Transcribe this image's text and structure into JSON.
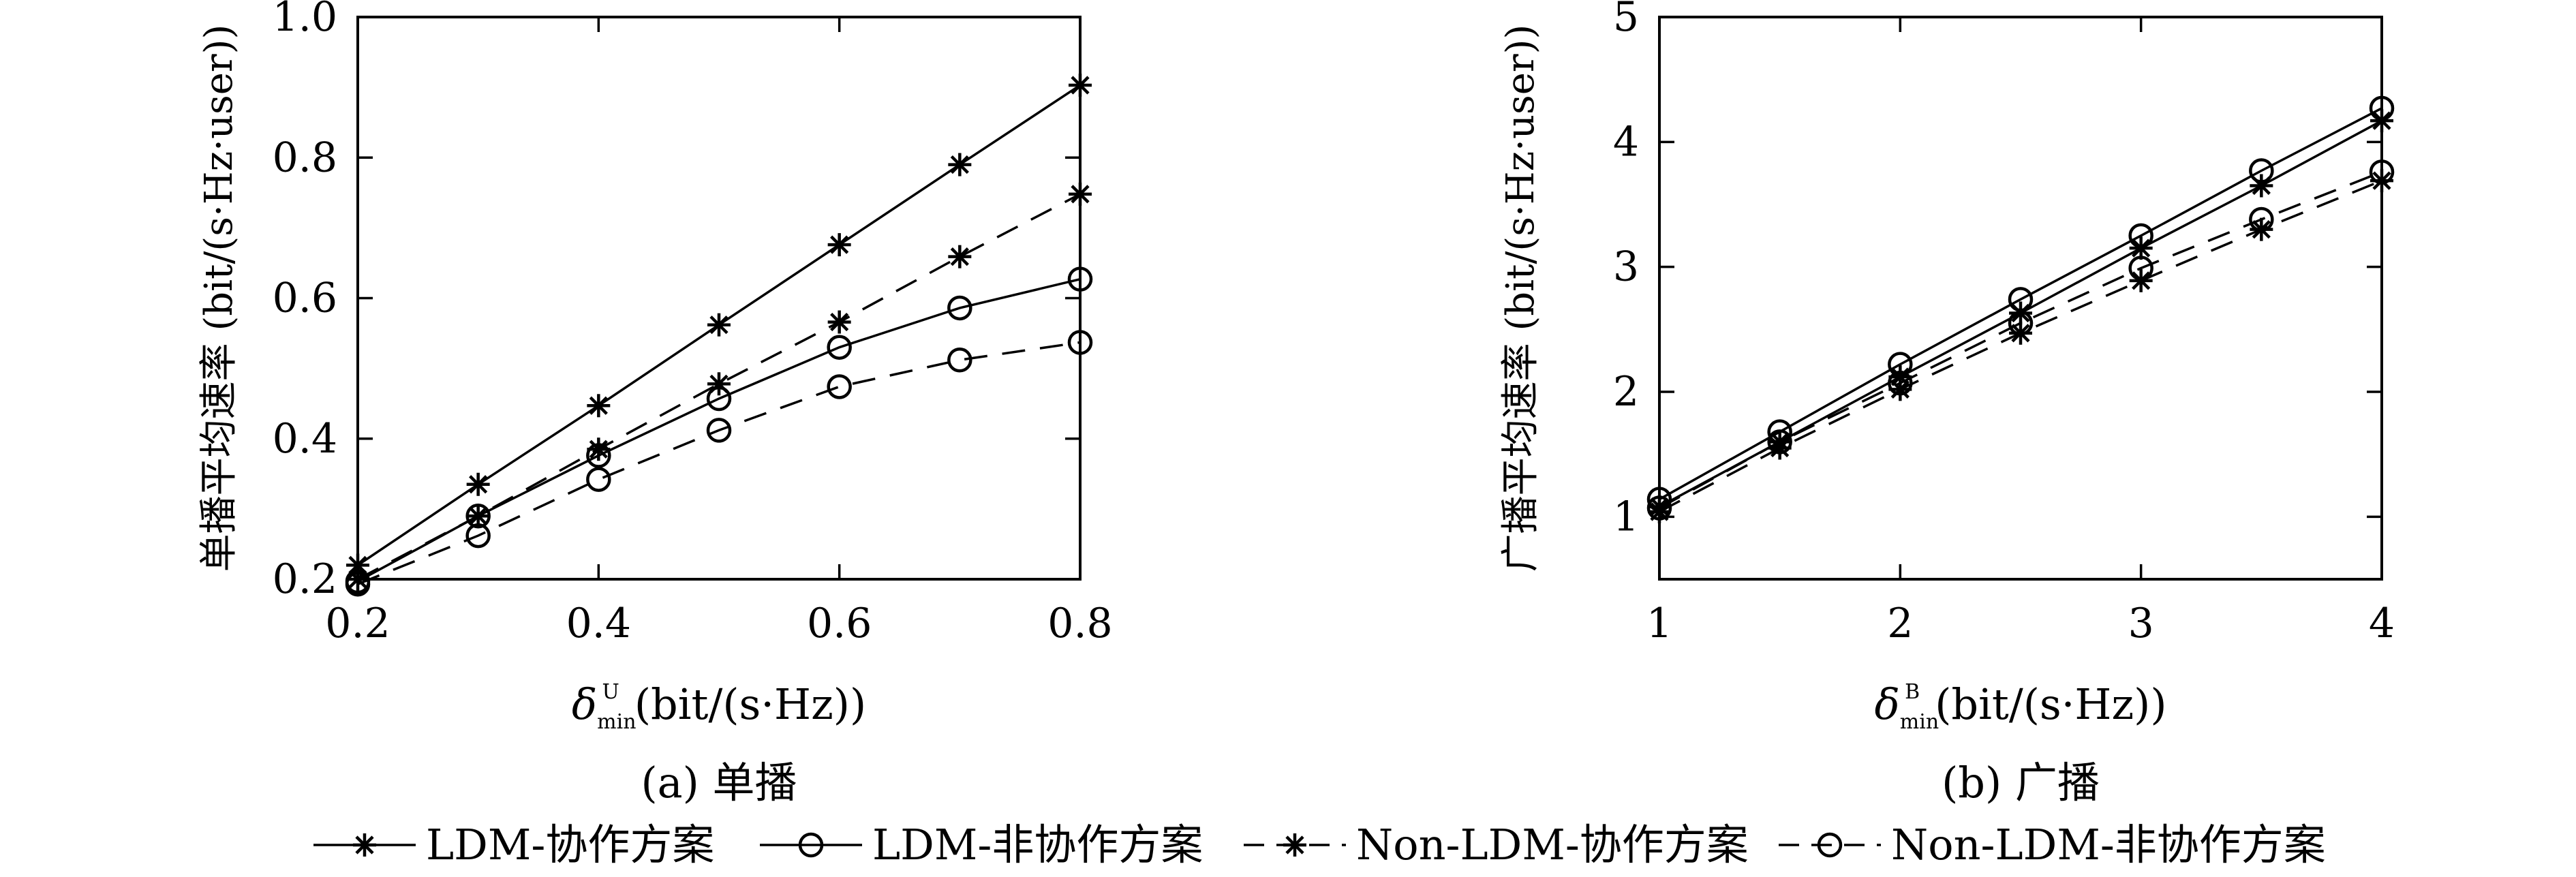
{
  "chart_data": [
    {
      "type": "line",
      "caption": "(a) 单播",
      "ylabel": "单播平均速率 (bit/(s·Hz·user))",
      "xlabel": {
        "symbol": "δ",
        "subscript": "min",
        "superscript": "U",
        "unit": "(bit/(s·Hz))"
      },
      "xlim": [
        0.2,
        0.8
      ],
      "ylim": [
        0.2,
        1.0
      ],
      "xticks": [
        "0.2",
        "0.4",
        "0.6",
        "0.8"
      ],
      "yticks": [
        "0.2",
        "0.4",
        "0.6",
        "0.8",
        "1.0"
      ],
      "x": [
        0.2,
        0.3,
        0.4,
        0.5,
        0.6,
        0.7,
        0.8
      ],
      "series": [
        {
          "name": "LDM-协作方案",
          "values": [
            0.22,
            0.335,
            0.447,
            0.562,
            0.676,
            0.79,
            0.903
          ]
        },
        {
          "name": "LDM-非协作方案",
          "values": [
            0.197,
            0.29,
            0.376,
            0.457,
            0.53,
            0.586,
            0.627
          ]
        },
        {
          "name": "Non-LDM-协作方案",
          "values": [
            0.2,
            0.29,
            0.385,
            0.478,
            0.566,
            0.659,
            0.748
          ]
        },
        {
          "name": "Non-LDM-非协作方案",
          "values": [
            0.193,
            0.262,
            0.342,
            0.412,
            0.474,
            0.512,
            0.537
          ]
        }
      ]
    },
    {
      "type": "line",
      "caption": "(b) 广播",
      "ylabel": "广播平均速率 (bit/(s·Hz·user))",
      "xlabel": {
        "symbol": "δ",
        "subscript": "min",
        "superscript": "B",
        "unit": "(bit/(s·Hz))"
      },
      "xlim": [
        1,
        4
      ],
      "ylim": [
        0.5,
        5
      ],
      "xticks": [
        "1",
        "2",
        "3",
        "4"
      ],
      "yticks": [
        "1",
        "2",
        "3",
        "4",
        "5"
      ],
      "x": [
        1,
        1.5,
        2,
        2.5,
        3,
        3.5,
        4
      ],
      "series": [
        {
          "name": "LDM-协作方案",
          "values": [
            1.08,
            1.6,
            2.12,
            2.63,
            3.15,
            3.65,
            4.17
          ]
        },
        {
          "name": "LDM-非协作方案",
          "values": [
            1.14,
            1.68,
            2.22,
            2.74,
            3.25,
            3.77,
            4.27
          ]
        },
        {
          "name": "Non-LDM-协作方案",
          "values": [
            1.04,
            1.55,
            2.02,
            2.47,
            2.89,
            3.3,
            3.69
          ]
        },
        {
          "name": "Non-LDM-非协作方案",
          "values": [
            1.07,
            1.6,
            2.07,
            2.55,
            2.99,
            3.38,
            3.76
          ]
        }
      ]
    }
  ],
  "legend": [
    {
      "label": "LDM-协作方案",
      "marker": "star",
      "dash": "solid"
    },
    {
      "label": "LDM-非协作方案",
      "marker": "circle",
      "dash": "solid"
    },
    {
      "label": "Non-LDM-协作方案",
      "marker": "star",
      "dash": "dashed"
    },
    {
      "label": "Non-LDM-非协作方案",
      "marker": "circle",
      "dash": "dashed"
    }
  ],
  "style": {
    "line_color": "#000000",
    "background": "#ffffff"
  }
}
